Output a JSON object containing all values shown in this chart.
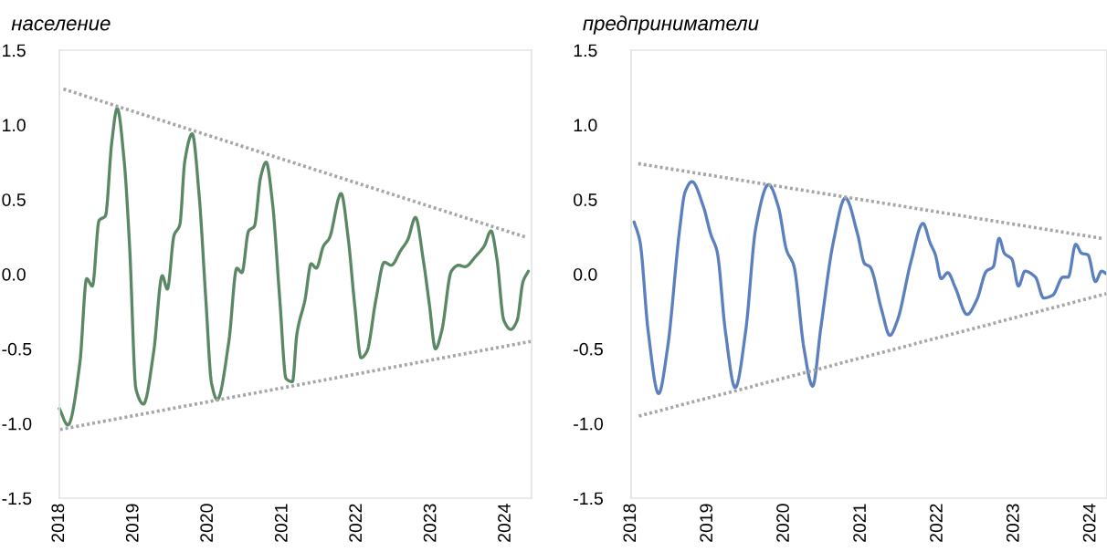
{
  "chart_data": [
    {
      "type": "line",
      "title": "население",
      "xlim": [
        "2018-01-01",
        "2024-05-07"
      ],
      "ylim": [
        -1.5,
        1.5
      ],
      "xticks": [
        {
          "value": "2018-01-01",
          "label": "2018"
        },
        {
          "value": "2019-01-01",
          "label": "2019"
        },
        {
          "value": "2020-01-01",
          "label": "2020"
        },
        {
          "value": "2021-01-01",
          "label": "2021"
        },
        {
          "value": "2022-01-01",
          "label": "2022"
        },
        {
          "value": "2023-01-01",
          "label": "2023"
        },
        {
          "value": "2024-01-01",
          "label": "2024"
        }
      ],
      "yticks": [
        {
          "value": -1.5,
          "label": "-1.5"
        },
        {
          "value": -1,
          "label": "-1.0"
        },
        {
          "value": -0.5,
          "label": "-0.5"
        },
        {
          "value": 0,
          "label": "0.0"
        },
        {
          "value": 0.5,
          "label": "0.5"
        },
        {
          "value": 1,
          "label": "1.0"
        },
        {
          "value": 1.5,
          "label": "1.5"
        }
      ],
      "grid": false,
      "marker": "none",
      "series": [
        {
          "color": "#5b8864",
          "line_style": "solid",
          "x": [
            "2018-01-01",
            "2018-02-12",
            "2018-04-12",
            "2018-05-15",
            "2018-06-12",
            "2018-07-15",
            "2018-08-15",
            "2018-09-15",
            "2018-10-12",
            "2018-11-15",
            "2018-12-12",
            "2019-01-12",
            "2019-02-18",
            "2019-04-09",
            "2019-05-21",
            "2019-06-15",
            "2019-07-18",
            "2019-08-15",
            "2019-09-09",
            "2019-10-15",
            "2019-11-18",
            "2019-12-21",
            "2020-01-18",
            "2020-02-15",
            "2020-04-12",
            "2020-05-21",
            "2020-06-15",
            "2020-07-18",
            "2020-08-15",
            "2020-09-15",
            "2020-10-12",
            "2020-11-12",
            "2020-12-18",
            "2021-01-18",
            "2021-02-18",
            "2021-03-12",
            "2021-04-21",
            "2021-05-21",
            "2021-06-15",
            "2021-07-21",
            "2021-08-18",
            "2021-10-15",
            "2021-11-18",
            "2021-12-21",
            "2022-01-21",
            "2022-02-18",
            "2022-04-04",
            "2022-05-15",
            "2022-06-18",
            "2022-08-04",
            "2022-09-07",
            "2022-10-15",
            "2022-11-23",
            "2022-12-23",
            "2023-01-21",
            "2023-02-21",
            "2023-04-09",
            "2023-05-15",
            "2023-06-15",
            "2023-08-07",
            "2023-09-18",
            "2023-10-21",
            "2023-11-18",
            "2023-12-23",
            "2024-01-26",
            "2024-02-26",
            "2024-03-26",
            "2024-04-21"
          ],
          "values": [
            -0.9,
            -1.01,
            -0.59,
            -0.03,
            -0.08,
            0.36,
            0.39,
            0.88,
            1.11,
            0.76,
            0.18,
            -0.77,
            -0.87,
            -0.52,
            -0.01,
            -0.1,
            0.26,
            0.33,
            0.76,
            0.94,
            0.53,
            -0.17,
            -0.73,
            -0.84,
            -0.45,
            0.04,
            0.01,
            0.29,
            0.32,
            0.65,
            0.75,
            0.48,
            -0.17,
            -0.7,
            -0.72,
            -0.4,
            -0.17,
            0.07,
            0.04,
            0.19,
            0.24,
            0.54,
            0.25,
            -0.21,
            -0.56,
            -0.52,
            -0.17,
            0.08,
            0.06,
            0.16,
            0.23,
            0.38,
            0.09,
            -0.21,
            -0.5,
            -0.38,
            0.02,
            0.06,
            0.05,
            0.12,
            0.19,
            0.29,
            0.11,
            -0.31,
            -0.37,
            -0.31,
            -0.05,
            0.02
          ]
        },
        {
          "color": "#a6a6a6",
          "line_style": "dotted",
          "x": [
            "2018-01-21",
            "2024-04-04"
          ],
          "values": [
            1.24,
            0.25
          ]
        },
        {
          "color": "#a6a6a6",
          "line_style": "dotted",
          "x": [
            "2018-01-04",
            "2024-05-04"
          ],
          "values": [
            -1.04,
            -0.45
          ]
        }
      ]
    },
    {
      "type": "line",
      "title": "предприниматели",
      "xlim": [
        "2018-01-01",
        "2024-03-18"
      ],
      "ylim": [
        -1.5,
        1.5
      ],
      "xticks": [
        {
          "value": "2018-01-01",
          "label": "2018"
        },
        {
          "value": "2019-01-01",
          "label": "2019"
        },
        {
          "value": "2020-01-01",
          "label": "2020"
        },
        {
          "value": "2021-01-01",
          "label": "2021"
        },
        {
          "value": "2022-01-01",
          "label": "2022"
        },
        {
          "value": "2023-01-01",
          "label": "2023"
        },
        {
          "value": "2024-01-01",
          "label": "2024"
        }
      ],
      "yticks": [
        {
          "value": -1.5,
          "label": "-1.5"
        },
        {
          "value": -1,
          "label": "-1.0"
        },
        {
          "value": -0.5,
          "label": "-0.5"
        },
        {
          "value": 0,
          "label": "0.0"
        },
        {
          "value": 0.5,
          "label": "0.5"
        },
        {
          "value": 1,
          "label": "1.0"
        },
        {
          "value": 1.5,
          "label": "1.5"
        }
      ],
      "grid": false,
      "marker": "none",
      "series": [
        {
          "color": "#5b80bd",
          "line_style": "solid",
          "x": [
            "2018-01-15",
            "2018-02-12",
            "2018-03-23",
            "2018-05-12",
            "2018-06-23",
            "2018-08-21",
            "2018-09-15",
            "2018-10-18",
            "2018-12-12",
            "2019-01-15",
            "2019-02-15",
            "2019-03-26",
            "2019-05-12",
            "2019-07-01",
            "2019-08-18",
            "2019-10-18",
            "2019-12-04",
            "2020-01-12",
            "2020-02-15",
            "2020-04-04",
            "2020-05-15",
            "2020-06-23",
            "2020-08-21",
            "2020-10-18",
            "2020-12-15",
            "2021-01-18",
            "2021-02-12",
            "2021-04-09",
            "2021-05-18",
            "2021-06-23",
            "2021-08-26",
            "2021-10-23",
            "2021-11-26",
            "2021-12-21",
            "2022-01-18",
            "2022-02-18",
            "2022-03-26",
            "2022-05-21",
            "2022-07-07",
            "2022-08-21",
            "2022-09-23",
            "2022-10-21",
            "2022-11-15",
            "2022-12-21",
            "2023-01-21",
            "2023-02-21",
            "2023-04-12",
            "2023-05-21",
            "2023-07-04",
            "2023-08-21",
            "2023-09-15",
            "2023-10-21",
            "2023-11-18",
            "2023-12-18",
            "2024-01-23",
            "2024-02-21",
            "2024-03-18"
          ],
          "values": [
            0.35,
            0.22,
            -0.38,
            -0.8,
            -0.5,
            0.31,
            0.55,
            0.62,
            0.45,
            0.27,
            0.15,
            -0.38,
            -0.76,
            -0.38,
            0.31,
            0.6,
            0.45,
            0.16,
            0.06,
            -0.5,
            -0.75,
            -0.36,
            0.21,
            0.51,
            0.27,
            0.07,
            0.05,
            -0.24,
            -0.41,
            -0.31,
            0.08,
            0.34,
            0.21,
            0.13,
            -0.03,
            0.01,
            -0.09,
            -0.27,
            -0.17,
            0.02,
            0.05,
            0.24,
            0.14,
            0.1,
            -0.08,
            0.02,
            -0.02,
            -0.16,
            -0.14,
            -0.02,
            -0.02,
            0.2,
            0.14,
            0.13,
            -0.05,
            0.02,
            0.0
          ]
        },
        {
          "color": "#a6a6a6",
          "line_style": "dotted",
          "x": [
            "2018-02-04",
            "2024-02-21"
          ],
          "values": [
            0.74,
            0.24
          ]
        },
        {
          "color": "#a6a6a6",
          "line_style": "dotted",
          "x": [
            "2018-02-07",
            "2024-03-18"
          ],
          "values": [
            -0.95,
            -0.13
          ]
        }
      ]
    }
  ]
}
